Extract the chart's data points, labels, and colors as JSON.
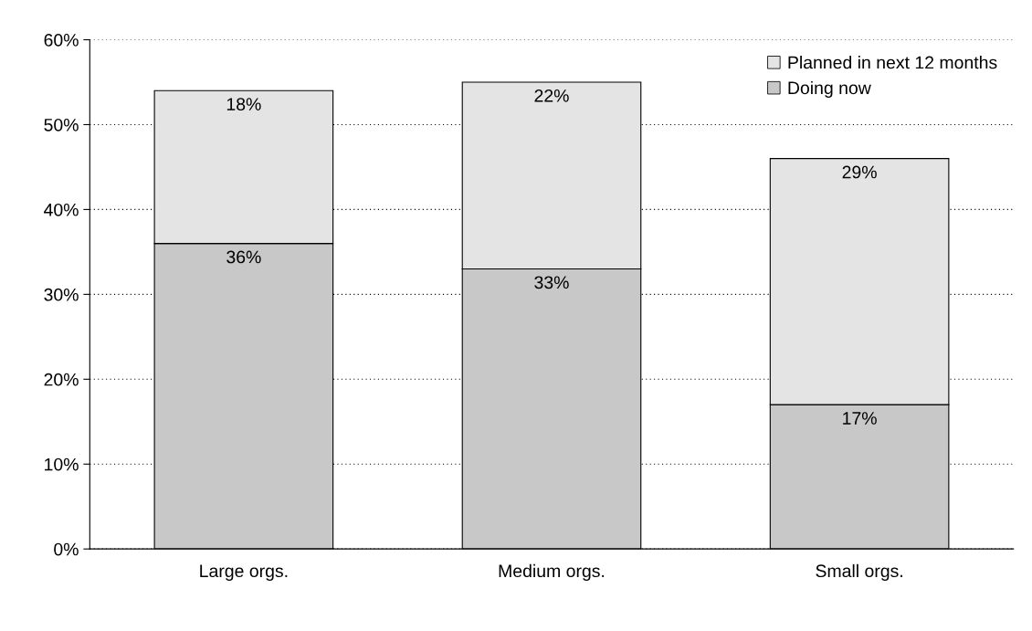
{
  "chart_data": {
    "type": "bar",
    "stacked": true,
    "categories": [
      "Large orgs.",
      "Medium orgs.",
      "Small orgs."
    ],
    "series": [
      {
        "name": "Doing now",
        "color": "#c8c8c8",
        "values": [
          36,
          33,
          17
        ],
        "value_labels": [
          "36%",
          "33%",
          "17%"
        ]
      },
      {
        "name": "Planned in next 12 months",
        "color": "#e4e4e4",
        "values": [
          18,
          22,
          29
        ],
        "value_labels": [
          "18%",
          "22%",
          "29%"
        ]
      }
    ],
    "ylim": [
      0,
      60
    ],
    "yticks": [
      {
        "value": 0,
        "label": "0%"
      },
      {
        "value": 10,
        "label": "10%"
      },
      {
        "value": 20,
        "label": "20%"
      },
      {
        "value": 30,
        "label": "30%"
      },
      {
        "value": 40,
        "label": "40%"
      },
      {
        "value": 50,
        "label": "50%"
      },
      {
        "value": 60,
        "label": "60%"
      }
    ],
    "grid": "y",
    "legend": "top right"
  }
}
